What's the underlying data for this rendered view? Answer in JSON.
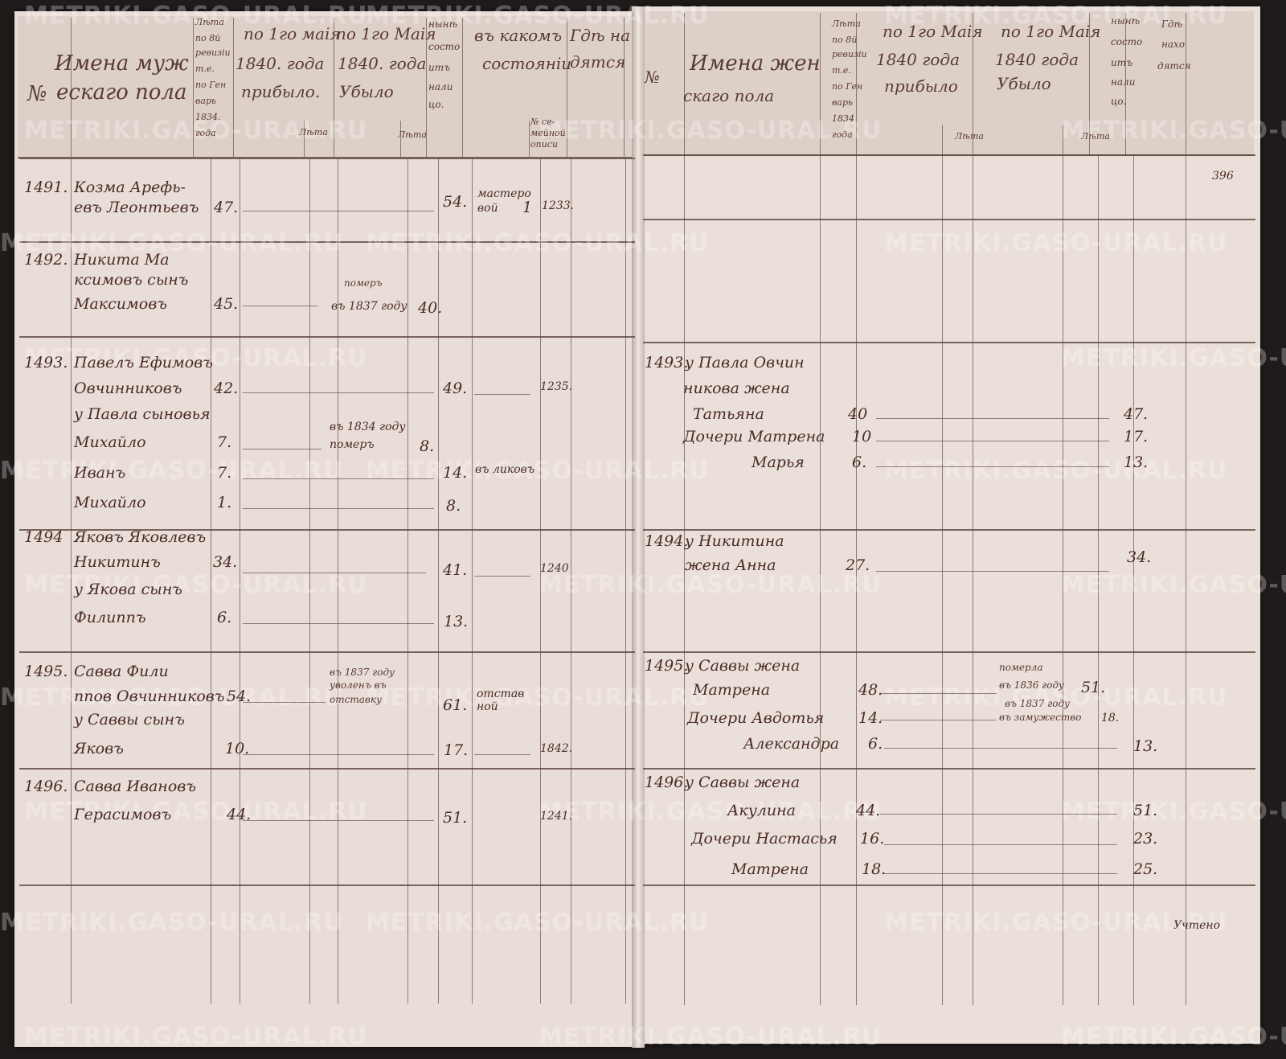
{
  "document": {
    "page_number": "396",
    "footer_note": "Учтено",
    "watermark": "METRIKI.GASO-URAL.RU"
  },
  "left_header": {
    "no": "№",
    "name_title_1": "Имена муж",
    "name_title_2": "ескаго пола",
    "rev_age": [
      "Лѣта",
      "по 8й",
      "ревизіи",
      "т.е.",
      "по Ген",
      "варь",
      "1834.",
      "года"
    ],
    "arrived_1": "по 1го маія",
    "arrived_2": "1840. года",
    "arrived_3": "прибыло.",
    "arrived_years": "Лѣта",
    "departed_1": "по 1го Маія",
    "departed_2": "1840. года",
    "departed_3": "Убыло",
    "departed_years": "Лѣта",
    "present": [
      "нынѣ",
      "состо",
      "итъ",
      "нали",
      "цо."
    ],
    "estate_1": "въ какомъ",
    "estate_2": "состояніи",
    "family_list": [
      "№ се-",
      "мейной",
      "описи"
    ],
    "location_1": "Гдѣ на",
    "location_2": "дятся"
  },
  "right_header": {
    "no": "№",
    "name_title_1": "Имена жен",
    "name_title_2": "скаго пола",
    "rev_age": [
      "Лѣта",
      "по 8й",
      "ревизіи",
      "т.е.",
      "по Ген",
      "варь",
      "1834",
      "года"
    ],
    "arrived_1": "по 1го Маія",
    "arrived_2": "1840 года",
    "arrived_3": "прибыло",
    "arrived_years": "Лѣта",
    "departed_1": "по 1го Маія",
    "departed_2": "1840 года",
    "departed_3": "Убыло",
    "departed_years": "Лѣта",
    "present": [
      "нынѣ",
      "состо",
      "итъ",
      "нали",
      "цо."
    ],
    "location_1": "Гдѣ",
    "location_2": "нахо",
    "location_3": "дятся"
  },
  "left_entries": [
    {
      "no": "1491.",
      "lines": [
        "Козма Арефь-",
        "евъ Леонтьевъ"
      ],
      "age_1834": "47.",
      "present": "54.",
      "estate": [
        "мастеро",
        "вой"
      ],
      "family_no": "1",
      "location": "1233."
    },
    {
      "no": "1492.",
      "lines": [
        "Никита Ма",
        "ксимовъ сынъ",
        "Максимовъ"
      ],
      "age_1834": "45.",
      "departed": [
        "померъ",
        "въ 1837 году"
      ],
      "departed_age": "40."
    },
    {
      "no": "1493.",
      "lines": [
        "Павелъ Ефимовъ",
        "Овчинниковъ"
      ],
      "age_1834": "42.",
      "present": "49.",
      "location": "1235.",
      "members": [
        {
          "label": "у Павла сыновья"
        },
        {
          "name": "Михайло",
          "age_1834": "7.",
          "departed": [
            "въ 1834 году",
            "померъ"
          ],
          "departed_age": "8."
        },
        {
          "name": "Иванъ",
          "age_1834": "7.",
          "present": "14.",
          "estate": "въ ликовъ"
        },
        {
          "name": "Михайло",
          "age_1834": "1.",
          "present": "8."
        }
      ]
    },
    {
      "no": "1494",
      "lines": [
        "Яковъ Яковлевъ",
        "Никитинъ"
      ],
      "age_1834": "34.",
      "present": "41.",
      "location": "1240",
      "members": [
        {
          "label": "у Якова сынъ"
        },
        {
          "name": "Филиппъ",
          "age_1834": "6.",
          "present": "13."
        }
      ]
    },
    {
      "no": "1495.",
      "lines": [
        "Савва Фили",
        "ппов Овчинниковъ"
      ],
      "age_1834": "54.",
      "departed": [
        "въ 1837 году",
        "уволенъ въ",
        "отставку"
      ],
      "present": "61.",
      "estate": [
        "отстав",
        "ной"
      ],
      "members": [
        {
          "label": "у Саввы сынъ"
        },
        {
          "name": "Яковъ",
          "age_1834": "10.",
          "present": "17.",
          "location": "1842."
        }
      ]
    },
    {
      "no": "1496.",
      "lines": [
        "Савва Ивановъ",
        "Герасимовъ"
      ],
      "age_1834": "44.",
      "present": "51.",
      "location": "1241."
    }
  ],
  "right_entries": [
    {
      "no": "1493.",
      "lines": [
        "у Павла Овчин",
        "никова жена"
      ],
      "members": [
        {
          "name": "Татьяна",
          "age_1834": "40",
          "present": "47."
        },
        {
          "name": "Дочери Матрена",
          "age_1834": "10",
          "present": "17."
        },
        {
          "name": "Марья",
          "age_1834": "6.",
          "present": "13."
        }
      ]
    },
    {
      "no": "1494.",
      "lines": [
        "у Никитина",
        "жена Анна"
      ],
      "age_1834": "27.",
      "present": "34."
    },
    {
      "no": "1495.",
      "lines": [
        "у Саввы жена"
      ],
      "members": [
        {
          "name": "Матрена",
          "age_1834": "48.",
          "departed": [
            "померла",
            "въ 1836 году"
          ],
          "departed_age": "51."
        },
        {
          "name": "Дочери Авдотья",
          "age_1834": "14.",
          "departed": [
            "въ 1837 году",
            "въ замужество"
          ],
          "departed_age": "18."
        },
        {
          "name": "Александра",
          "age_1834": "6.",
          "present": "13."
        }
      ]
    },
    {
      "no": "1496.",
      "lines": [
        "у Саввы жена"
      ],
      "members": [
        {
          "name": "Акулина",
          "age_1834": "44.",
          "present": "51."
        },
        {
          "name": "Дочери Настасья",
          "age_1834": "16.",
          "present": "23."
        },
        {
          "name": "Матрена",
          "age_1834": "18.",
          "present": "25."
        }
      ]
    }
  ]
}
